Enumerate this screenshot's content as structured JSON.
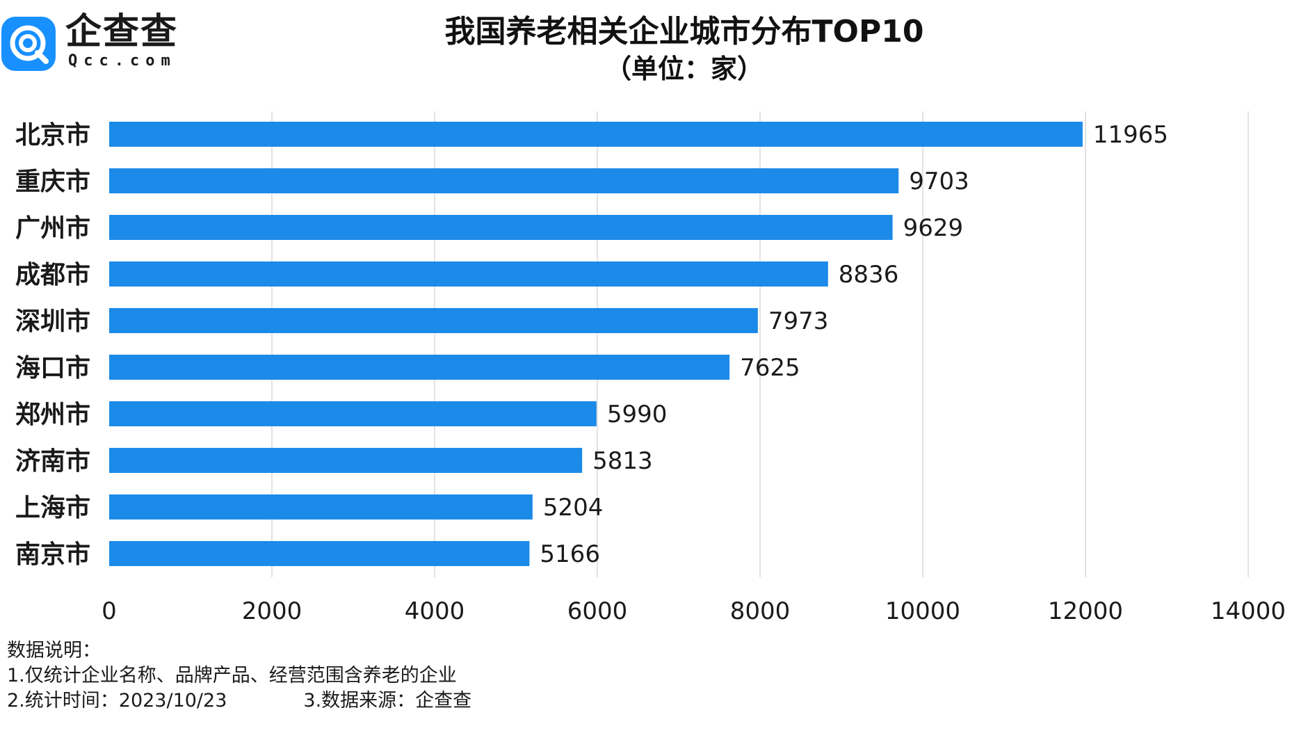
{
  "logo": {
    "name": "企查查",
    "domain": "Qcc.com",
    "brand_color": "#1890FF"
  },
  "chart_data": {
    "type": "bar",
    "orientation": "horizontal",
    "title": "我国养老相关企业城市分布TOP10",
    "subtitle": "（单位：家）",
    "categories": [
      "北京市",
      "重庆市",
      "广州市",
      "成都市",
      "深圳市",
      "海口市",
      "郑州市",
      "济南市",
      "上海市",
      "南京市"
    ],
    "values": [
      11965,
      9703,
      9629,
      8836,
      7973,
      7625,
      5990,
      5813,
      5204,
      5166
    ],
    "xlim": [
      0,
      14000
    ],
    "xticks": [
      0,
      2000,
      4000,
      6000,
      8000,
      10000,
      12000,
      14000
    ],
    "xlabel": "",
    "ylabel": "",
    "bar_color": "#1C8AE8",
    "grid": true,
    "data_labels": true
  },
  "notes": {
    "heading": "数据说明：",
    "line1": "1.仅统计企业名称、品牌产品、经营范围含养老的企业",
    "line2": "2.统计时间：2023/10/23",
    "line3": "3.数据来源：企查查"
  }
}
